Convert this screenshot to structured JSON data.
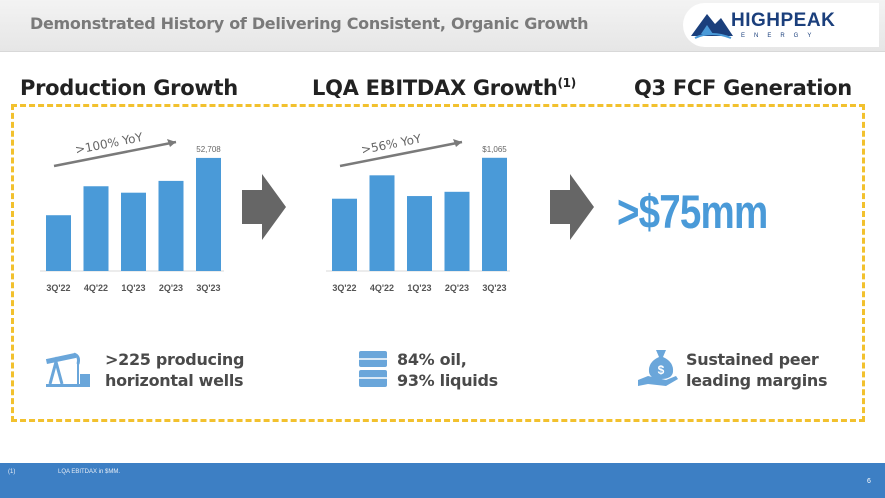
{
  "header": {
    "title": "Demonstrated History of Delivering Consistent, Organic Growth"
  },
  "logo": {
    "name": "HIGHPEAK",
    "sub": "ENERGY"
  },
  "sections": {
    "production": {
      "title": "Production Growth"
    },
    "ebitdax": {
      "title": "LQA EBITDAX Growth",
      "sup": "(1)"
    },
    "fcf": {
      "title": "Q3 FCF Generation",
      "value": ">$75mm"
    }
  },
  "stats": [
    {
      "icon": "oil-pumpjack-icon",
      "line1": ">225 producing",
      "line2": "horizontal wells"
    },
    {
      "icon": "oil-barrels-icon",
      "line1": "84% oil,",
      "line2": "93% liquids"
    },
    {
      "icon": "money-bag-hand-icon",
      "line1": "Sustained peer",
      "line2": "leading margins"
    }
  ],
  "footer": {
    "footnote_num": "(1)",
    "footnote_text": "LQA EBITDAX in $MM.",
    "page_number": "6"
  },
  "colors": {
    "bar": "#4a9ad8",
    "accent_dash": "#f2c12e",
    "footer": "#3d7fc4",
    "arrow": "#666666"
  },
  "chart_data": [
    {
      "type": "bar",
      "categories": [
        "3Q'22",
        "4Q'22",
        "1Q'23",
        "2Q'23",
        "3Q'23"
      ],
      "values": [
        26000,
        39500,
        36500,
        42000,
        52708
      ],
      "data_labels": [
        "",
        "",
        "",
        "",
        "52,708"
      ],
      "annotation": ">100% YoY",
      "ylim": [
        0,
        55000
      ]
    },
    {
      "type": "bar",
      "categories": [
        "3Q'22",
        "4Q'22",
        "1Q'23",
        "2Q'23",
        "3Q'23"
      ],
      "values": [
        680,
        900,
        705,
        745,
        1065
      ],
      "data_labels": [
        "",
        "",
        "",
        "",
        "$1,065"
      ],
      "annotation": ">56% YoY",
      "ylim": [
        0,
        1110
      ]
    }
  ]
}
